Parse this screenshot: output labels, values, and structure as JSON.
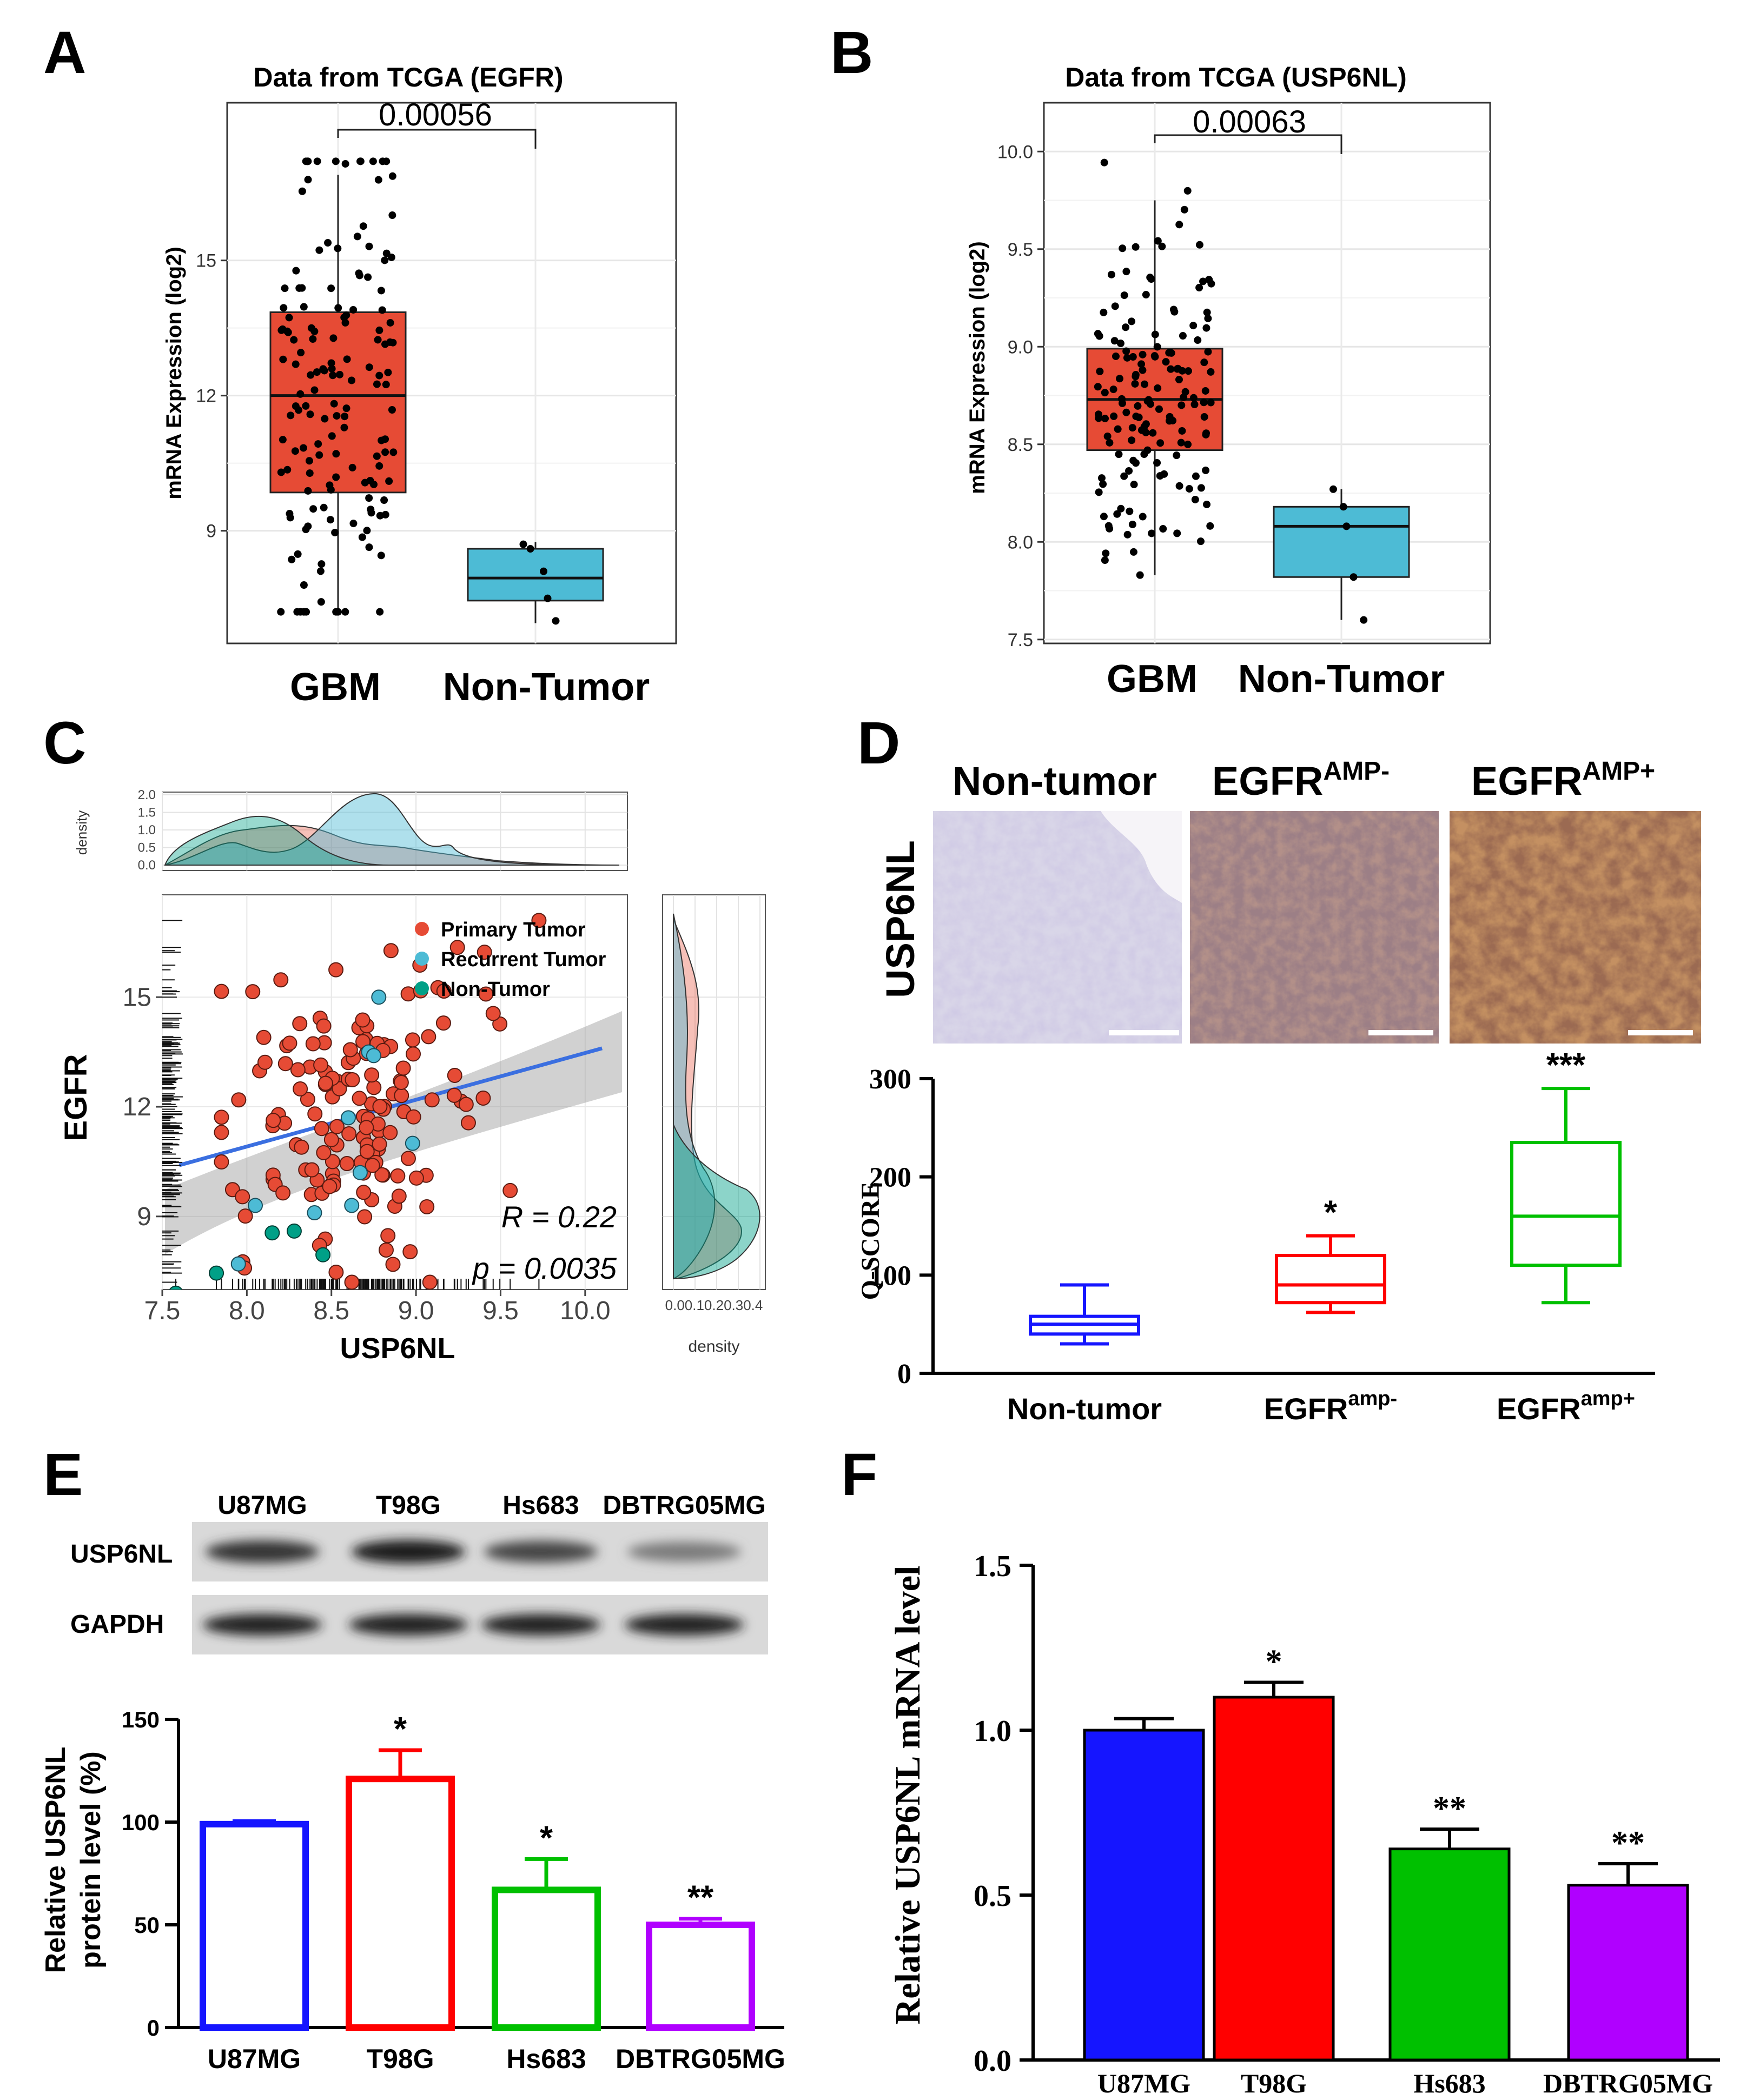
{
  "panel_letters": [
    "A",
    "B",
    "C",
    "D",
    "E",
    "F"
  ],
  "colors": {
    "gbm": "#e64b35",
    "nontumor": "#4dbbd5",
    "primary": "#e64b35",
    "recurrent": "#4dbbd5",
    "nontumor_green": "#00a087",
    "regression": "#3b6fe0",
    "blue": "#1515ff",
    "red": "#ff0000",
    "green": "#00c000",
    "purple": "#b000ff"
  },
  "chart_data": [
    {
      "id": "A",
      "type": "box",
      "title": "Data from TCGA (EGFR)",
      "ylabel": "mRNA Expression (log2)",
      "ylim": [
        6.5,
        18.5
      ],
      "yticks": [
        "9",
        "12",
        "15"
      ],
      "yticks_values": [
        9,
        12,
        15
      ],
      "categories": [
        "GBM",
        "Non-Tumor"
      ],
      "boxes": [
        {
          "name": "GBM",
          "q1": 9.85,
          "median": 12.0,
          "q3": 13.85,
          "whisker_low": 7.2,
          "whisker_high": 16.9,
          "color": "#e64b35"
        },
        {
          "name": "Non-Tumor",
          "q1": 7.45,
          "median": 7.95,
          "q3": 8.6,
          "whisker_low": 6.95,
          "whisker_high": 8.75,
          "color": "#4dbbd5"
        }
      ],
      "nontumor_points": [
        [
          8.7,
          -0.12
        ],
        [
          8.1,
          0.08
        ],
        [
          7.5,
          0.12
        ],
        [
          7.0,
          0.2
        ],
        [
          8.6,
          -0.05
        ]
      ],
      "pvalue": "0.00056"
    },
    {
      "id": "B",
      "type": "box",
      "title": "Data from TCGA (USP6NL)",
      "ylabel": "mRNA Expression (log2)",
      "ylim": [
        7.48,
        10.25
      ],
      "yticks": [
        "7.5",
        "8.0",
        "8.5",
        "9.0",
        "9.5",
        "10.0"
      ],
      "yticks_values": [
        7.5,
        8.0,
        8.5,
        9.0,
        9.5,
        10.0
      ],
      "categories": [
        "GBM",
        "Non-Tumor"
      ],
      "boxes": [
        {
          "name": "GBM",
          "q1": 8.47,
          "median": 8.73,
          "q3": 8.99,
          "whisker_low": 7.83,
          "whisker_high": 9.75,
          "color": "#e64b35"
        },
        {
          "name": "Non-Tumor",
          "q1": 7.82,
          "median": 8.08,
          "q3": 8.18,
          "whisker_low": 7.6,
          "whisker_high": 8.27,
          "color": "#4dbbd5"
        }
      ],
      "nontumor_points": [
        [
          8.27,
          -0.08
        ],
        [
          8.18,
          0.02
        ],
        [
          8.08,
          0.05
        ],
        [
          7.82,
          0.12
        ],
        [
          7.6,
          0.22
        ]
      ],
      "pvalue": "0.00063"
    },
    {
      "id": "C",
      "type": "scatter",
      "xlabel": "USP6NL",
      "ylabel": "EGFR",
      "xlim": [
        7.5,
        10.25
      ],
      "ylim": [
        7.0,
        17.8
      ],
      "xticks": [
        "7.5",
        "8.0",
        "8.5",
        "9.0",
        "9.5",
        "10.0"
      ],
      "xticks_values": [
        7.5,
        8.0,
        8.5,
        9.0,
        9.5,
        10.0
      ],
      "yticks": [
        "9",
        "12",
        "15"
      ],
      "yticks_values": [
        9,
        12,
        15
      ],
      "legend": [
        "Primary Tumor",
        "Recurrent Tumor",
        "Non-Tumor"
      ],
      "regression": {
        "x0": 7.6,
        "y0": 10.4,
        "x1": 10.1,
        "y1": 13.6
      },
      "stat_r": "R = 0.22",
      "stat_p": "p = 0.0035",
      "recurrent": [
        [
          8.78,
          15.0
        ],
        [
          8.72,
          13.5
        ],
        [
          8.75,
          13.4
        ],
        [
          8.6,
          11.7
        ],
        [
          8.67,
          10.2
        ],
        [
          8.98,
          11.0
        ],
        [
          8.05,
          9.3
        ],
        [
          8.4,
          9.1
        ],
        [
          8.62,
          9.3
        ],
        [
          7.95,
          7.7
        ]
      ],
      "nontumor": [
        [
          7.58,
          6.9
        ],
        [
          7.82,
          7.45
        ],
        [
          8.15,
          8.55
        ],
        [
          8.28,
          8.6
        ],
        [
          8.45,
          7.95
        ]
      ],
      "density_top_label": "density",
      "density_top_ticks": [
        "0.0",
        "0.5",
        "1.0",
        "1.5",
        "2.0"
      ],
      "density_right_label": "density",
      "density_right_ticks": "0.00.10.20.30.4"
    },
    {
      "id": "D",
      "type": "box",
      "ylabel": "Q-SCORE",
      "ylim": [
        0,
        300
      ],
      "yticks": [
        "0",
        "100",
        "200",
        "300"
      ],
      "yticks_values": [
        0,
        100,
        200,
        300
      ],
      "categories": [
        "Non-tumor",
        "EGFR^amp-",
        "EGFR^amp+"
      ],
      "boxes": [
        {
          "name": "Non-tumor",
          "whisker_low": 30,
          "q1": 40,
          "median": 50,
          "q3": 58,
          "whisker_high": 90,
          "color": "#1515ff"
        },
        {
          "name": "EGFR amp-",
          "whisker_low": 62,
          "q1": 72,
          "median": 90,
          "q3": 120,
          "whisker_high": 140,
          "color": "#ff0000"
        },
        {
          "name": "EGFR amp+",
          "whisker_low": 72,
          "q1": 110,
          "median": 160,
          "q3": 235,
          "whisker_high": 290,
          "color": "#00c000"
        }
      ],
      "significance": [
        "",
        "*",
        "***"
      ],
      "image_titles": [
        "Non-tumor",
        "EGFR",
        "EGFR"
      ],
      "image_superscripts": [
        "",
        "AMP-",
        "AMP+"
      ],
      "image_row_label": "USP6NL",
      "tick_bases": [
        "Non-tumor",
        "EGFR",
        "EGFR"
      ],
      "tick_supers": [
        "",
        "amp-",
        "amp+"
      ]
    },
    {
      "id": "E",
      "type": "bar",
      "ylabel_line1": "Relative USP6NL",
      "ylabel_line2": "protein level  (%)",
      "ylim": [
        0,
        150
      ],
      "yticks": [
        "0",
        "50",
        "100",
        "150"
      ],
      "yticks_values": [
        0,
        50,
        100,
        150
      ],
      "categories": [
        "U87MG",
        "T98G",
        "Hs683",
        "DBTRG05MG"
      ],
      "values": [
        99,
        121,
        67,
        50
      ],
      "errors": [
        1.5,
        14,
        15,
        3
      ],
      "significance": [
        "",
        "*",
        "*",
        "**"
      ],
      "colors": [
        "#1515ff",
        "#ff0000",
        "#00c000",
        "#b000ff"
      ],
      "blot_lanes": [
        "U87MG",
        "T98G",
        "Hs683",
        "DBTRG05MG"
      ],
      "blot_rows": [
        "USP6NL",
        "GAPDH"
      ],
      "blot_intensity": [
        0.82,
        0.95,
        0.72,
        0.42
      ]
    },
    {
      "id": "F",
      "type": "bar",
      "ylabel": "Relative USP6NL mRNA level",
      "ylim": [
        0,
        1.5
      ],
      "yticks": [
        "0.0",
        "0.5",
        "1.0",
        "1.5"
      ],
      "yticks_values": [
        0.0,
        0.5,
        1.0,
        1.5
      ],
      "categories": [
        "U87MG",
        "T98G",
        "Hs683",
        "DBTRG05MG"
      ],
      "values": [
        1.0,
        1.1,
        0.64,
        0.53
      ],
      "errors": [
        0.035,
        0.045,
        0.06,
        0.065
      ],
      "significance": [
        "",
        "*",
        "**",
        "**"
      ],
      "colors": [
        "#1515ff",
        "#ff0000",
        "#00c000",
        "#b000ff"
      ]
    }
  ]
}
